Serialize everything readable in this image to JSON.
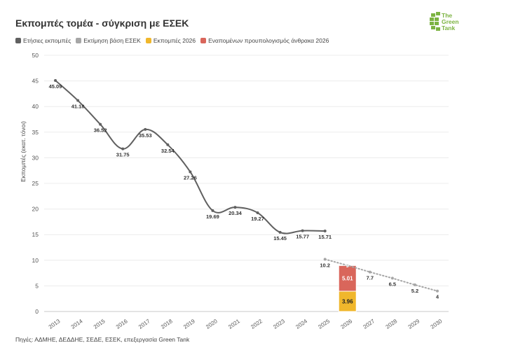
{
  "title": "Εκπομπές τομέα - σύγκριση με ΕΣΕΚ",
  "legend": [
    {
      "label": "Ετήσιες εκπομπές",
      "color": "#606060"
    },
    {
      "label": "Εκτίμηση βάση ΕΣΕΚ",
      "color": "#a6a6a6"
    },
    {
      "label": "Εκπομπές 2026",
      "color": "#f0b72c"
    },
    {
      "label": "Εναπομένων προυπολογισμός άνθρακα 2026",
      "color": "#d9665b"
    }
  ],
  "logo": {
    "line1": "The",
    "line2": "Green",
    "line3": "Tank"
  },
  "source": "Πηγές: ΑΔΜΗΕ, ΔΕΔΔΗΕ, ΣΕΔΕ, ΕΣΕΚ, επεξεργασία Green Tank",
  "chart_data": {
    "type": "line",
    "title": "Εκπομπές τομέα - σύγκριση με ΕΣΕΚ",
    "ylabel": "Εκπομπές (εκατ. τόνοι)",
    "ylim": [
      0,
      50
    ],
    "yticks": [
      0,
      5,
      10,
      15,
      20,
      25,
      30,
      35,
      40,
      45,
      50
    ],
    "categories": [
      "2013",
      "2014",
      "2015",
      "2016",
      "2017",
      "2018",
      "2019",
      "2020",
      "2021",
      "2022",
      "2023",
      "2024",
      "2025",
      "2026",
      "2027",
      "2028",
      "2029",
      "2030"
    ],
    "series": [
      {
        "name": "Ετήσιες εκπομπές",
        "color": "#606060",
        "style": "solid",
        "values": [
          45.09,
          41.18,
          36.52,
          31.75,
          35.53,
          32.54,
          27.26,
          19.69,
          20.34,
          19.27,
          15.45,
          15.77,
          15.71,
          null,
          null,
          null,
          null,
          null
        ],
        "labels": [
          "45.09",
          "41.18",
          "36.52",
          "31.75",
          "35.53",
          "32.54",
          "27.26",
          "19.69",
          "20.34",
          "19.27",
          "15.45",
          "15.77",
          "15.71",
          "",
          "",
          "",
          "",
          ""
        ]
      },
      {
        "name": "Εκτίμηση βάση ΕΣΕΚ",
        "color": "#a6a6a6",
        "style": "dotted",
        "values": [
          null,
          null,
          null,
          null,
          null,
          null,
          null,
          null,
          null,
          null,
          null,
          null,
          10.2,
          9,
          7.7,
          6.5,
          5.2,
          4
        ],
        "labels": [
          "",
          "",
          "",
          "",
          "",
          "",
          "",
          "",
          "",
          "",
          "",
          "",
          "10.2",
          "9",
          "7.7",
          "6.5",
          "5.2",
          "4"
        ]
      }
    ],
    "stacked_bar": {
      "category": "2026",
      "segments": [
        {
          "name": "Εκπομπές 2026",
          "value": 3.96,
          "label": "3.96",
          "color": "#f0b72c"
        },
        {
          "name": "Εναπομένων προυπολογισμός άνθρακα 2026",
          "value": 5.01,
          "label": "5.01",
          "color": "#d9665b"
        }
      ]
    },
    "grid": true,
    "legend_position": "top-left"
  }
}
